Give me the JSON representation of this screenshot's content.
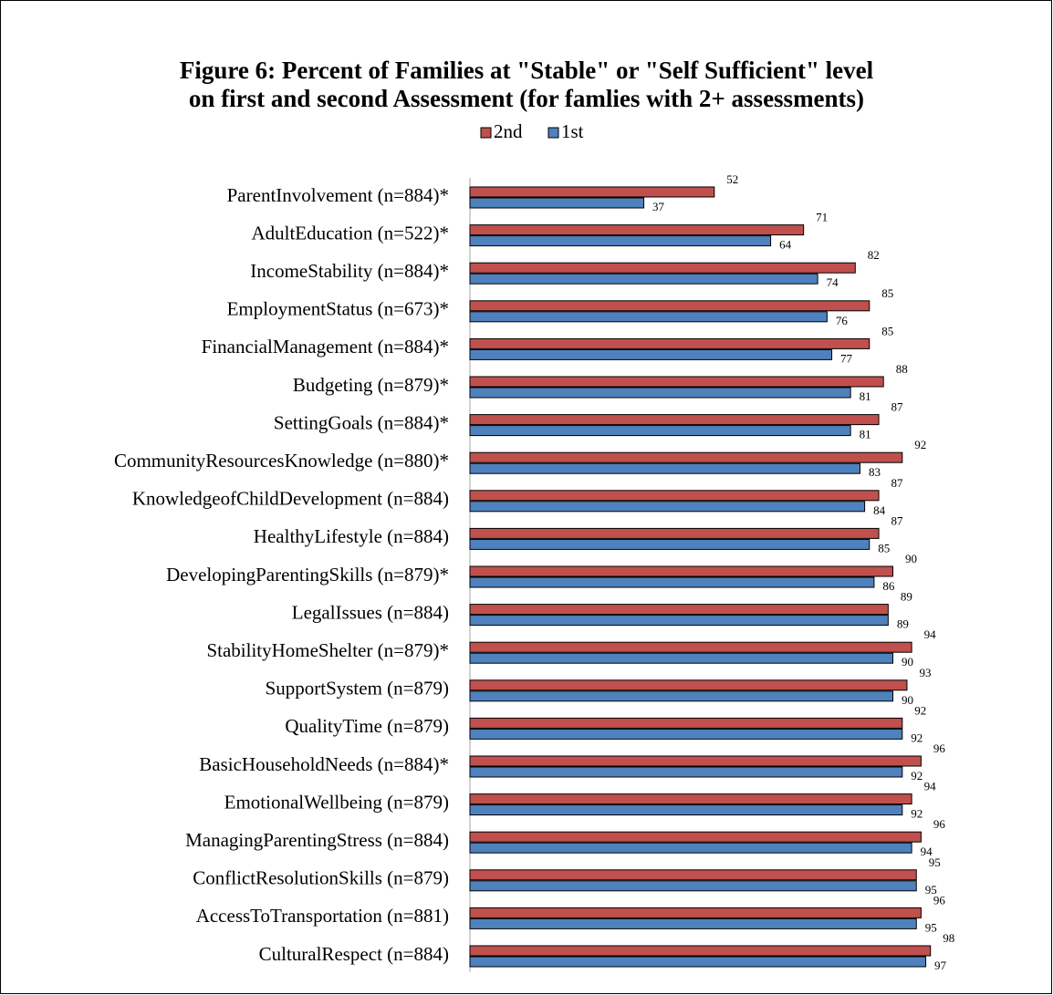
{
  "chart_data": {
    "type": "bar",
    "orientation": "horizontal",
    "title": [
      "Figure 6: Percent of Families at \"Stable\" or \"Self Sufficient\" level",
      "on first and second Assessment (for famlies with 2+ assessments)"
    ],
    "categories": [
      "ParentInvolvement (n=884)*",
      "AdultEducation (n=522)*",
      "IncomeStability (n=884)*",
      "EmploymentStatus (n=673)*",
      "FinancialManagement (n=884)*",
      "Budgeting (n=879)*",
      "SettingGoals (n=884)*",
      "CommunityResourcesKnowledge (n=880)*",
      "KnowledgeofChildDevelopment (n=884)",
      "HealthyLifestyle (n=884)",
      "DevelopingParentingSkills (n=879)*",
      "LegalIssues (n=884)",
      "StabilityHomeShelter (n=879)*",
      "SupportSystem (n=879)",
      "QualityTime (n=879)",
      "BasicHouseholdNeeds (n=884)*",
      "EmotionalWellbeing (n=879)",
      "ManagingParentingStress (n=884)",
      "ConflictResolutionSkills (n=879)",
      "AccessToTransportation (n=881)",
      "CulturalRespect (n=884)"
    ],
    "series": [
      {
        "name": "2nd",
        "color": "#c0504d",
        "values": [
          52,
          71,
          82,
          85,
          85,
          88,
          87,
          92,
          87,
          87,
          90,
          89,
          94,
          93,
          92,
          96,
          94,
          96,
          95,
          96,
          98
        ]
      },
      {
        "name": "1st",
        "color": "#4f81bd",
        "values": [
          37,
          64,
          74,
          76,
          77,
          81,
          81,
          83,
          84,
          85,
          86,
          89,
          90,
          90,
          92,
          92,
          92,
          94,
          95,
          95,
          97
        ]
      }
    ],
    "xlim": [
      0,
      100
    ]
  }
}
